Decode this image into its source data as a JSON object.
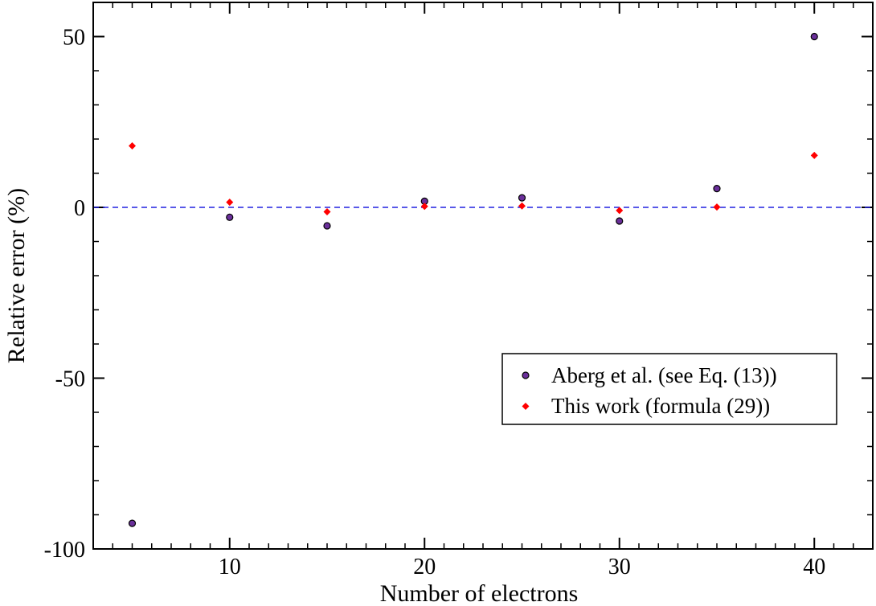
{
  "chart_data": {
    "type": "scatter",
    "xlabel": "Number of electrons",
    "ylabel": "Relative error (%)",
    "xlim": [
      3,
      43
    ],
    "ylim": [
      -100,
      60
    ],
    "x_major_ticks": [
      10,
      20,
      30,
      40
    ],
    "y_major_ticks": [
      -100,
      -50,
      0,
      50
    ],
    "x_minor_step": 1,
    "y_minor_step": 10,
    "grid": false,
    "legend_position": "right",
    "reference_line": {
      "y": 0,
      "style": "dashed",
      "color": "#2020e0"
    },
    "series": [
      {
        "name": "Aberg et al. (see Eq. (13))",
        "marker": "circle",
        "color": "#6a2f9a",
        "edge_color": "#000000",
        "x": [
          5,
          10,
          15,
          20,
          25,
          30,
          35,
          40
        ],
        "y": [
          -92.5,
          -2.9,
          -5.4,
          1.8,
          2.8,
          -4.0,
          5.5,
          50.0
        ]
      },
      {
        "name": "This work (formula (29))",
        "marker": "diamond",
        "color": "#ff0000",
        "x": [
          5,
          10,
          15,
          20,
          25,
          30,
          35,
          40
        ],
        "y": [
          18.0,
          1.5,
          -1.3,
          0.3,
          0.4,
          -0.9,
          0.1,
          15.2
        ]
      }
    ]
  }
}
